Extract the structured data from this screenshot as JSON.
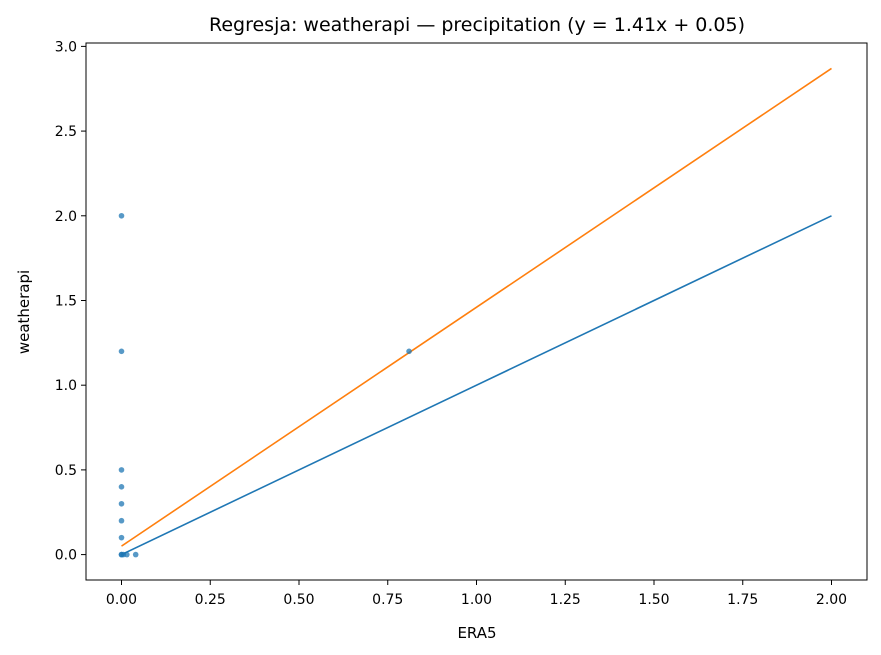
{
  "chart_data": {
    "type": "scatter",
    "title": "Regresja: weatherapi — precipitation (y = 1.41x + 0.05)",
    "xlabel": "ERA5",
    "ylabel": "weatherapi",
    "xlim": [
      -0.1,
      2.1
    ],
    "ylim": [
      -0.15,
      3.02
    ],
    "xticks": [
      0.0,
      0.25,
      0.5,
      0.75,
      1.0,
      1.25,
      1.5,
      1.75,
      2.0
    ],
    "xtick_labels": [
      "0.00",
      "0.25",
      "0.50",
      "0.75",
      "1.00",
      "1.25",
      "1.50",
      "1.75",
      "2.00"
    ],
    "yticks": [
      0.0,
      0.5,
      1.0,
      1.5,
      2.0,
      2.5,
      3.0
    ],
    "ytick_labels": [
      "0.0",
      "0.5",
      "1.0",
      "1.5",
      "2.0",
      "2.5",
      "3.0"
    ],
    "grid": false,
    "points": {
      "color": "#1f77b4",
      "x": [
        0.0,
        0.0,
        0.0,
        0.0,
        0.0,
        0.0,
        0.0,
        0.0,
        0.0,
        0.005,
        0.015,
        0.04,
        0.81
      ],
      "y": [
        2.0,
        1.2,
        0.5,
        0.4,
        0.3,
        0.2,
        0.1,
        0.0,
        0.0,
        0.0,
        0.0,
        0.0,
        1.2
      ]
    },
    "lines": [
      {
        "color": "#1f77b4",
        "x": [
          0.0,
          2.0
        ],
        "y": [
          0.0,
          2.0
        ]
      },
      {
        "color": "#ff7f0e",
        "x": [
          0.0,
          2.0
        ],
        "y": [
          0.05,
          2.87
        ]
      }
    ]
  }
}
